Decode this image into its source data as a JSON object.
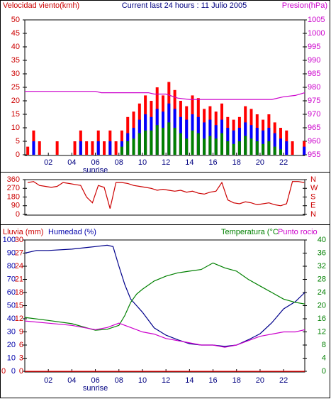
{
  "chart_data": [
    {
      "type": "bar",
      "title": "Current last 24 hours : 11 Julio 2005",
      "left_label": "Velocidad viento(kmh)",
      "right_label": "Presion(hPa)",
      "xlim": [
        0,
        23.8
      ],
      "xticks": [
        {
          "value": 2,
          "label": "02"
        },
        {
          "value": 4,
          "label": "04"
        },
        {
          "value": 6,
          "label": "06"
        },
        {
          "value": 8,
          "label": "08"
        },
        {
          "value": 10,
          "label": "10"
        },
        {
          "value": 12,
          "label": "12"
        },
        {
          "value": 14,
          "label": "14"
        },
        {
          "value": 16,
          "label": "16"
        },
        {
          "value": 18,
          "label": "18"
        },
        {
          "value": 20,
          "label": "20"
        },
        {
          "value": 22,
          "label": "22"
        }
      ],
      "annotation": {
        "x": 6,
        "text": "sunrise"
      },
      "ylim": [
        0,
        50
      ],
      "yticks": [
        0,
        5,
        10,
        15,
        20,
        25,
        30,
        35,
        40,
        45,
        50
      ],
      "y_color": "#cc0000",
      "y2lim": [
        955,
        1005
      ],
      "y2ticks": [
        955,
        960,
        965,
        970,
        975,
        980,
        985,
        990,
        995,
        1000,
        1005
      ],
      "y2_color": "#cc00cc",
      "x": [
        0.25,
        0.75,
        1.25,
        1.75,
        2.25,
        2.75,
        3.25,
        3.75,
        4.25,
        4.75,
        5.25,
        5.75,
        6.25,
        6.75,
        7.25,
        7.75,
        8.25,
        8.75,
        9.25,
        9.75,
        10.25,
        10.75,
        11.25,
        11.75,
        12.25,
        12.75,
        13.25,
        13.75,
        14.25,
        14.75,
        15.25,
        15.75,
        16.25,
        16.75,
        17.25,
        17.75,
        18.25,
        18.75,
        19.25,
        19.75,
        20.25,
        20.75,
        21.25,
        21.75,
        22.25,
        22.75,
        23.25,
        23.75
      ],
      "series": [
        {
          "color": "#ff0000",
          "values": [
            3,
            9,
            5,
            0,
            0,
            5,
            0,
            0,
            5,
            9,
            5,
            5,
            9,
            5,
            9,
            5,
            9,
            14,
            16,
            19,
            22,
            20,
            25,
            22,
            27,
            24,
            20,
            18,
            22,
            21,
            17,
            18,
            16,
            19,
            14,
            13,
            14,
            18,
            17,
            15,
            13,
            15,
            12,
            10,
            9,
            5,
            0,
            5
          ]
        },
        {
          "color": "#0000ff",
          "values": [
            0,
            5,
            0,
            0,
            0,
            0,
            0,
            0,
            0,
            5,
            0,
            0,
            5,
            0,
            5,
            0,
            5,
            8,
            10,
            13,
            15,
            14,
            17,
            16,
            19,
            17,
            14,
            13,
            15,
            14,
            12,
            13,
            11,
            13,
            10,
            9,
            10,
            12,
            11,
            10,
            9,
            10,
            8,
            6,
            5,
            0,
            0,
            3
          ]
        },
        {
          "color": "#008000",
          "values": [
            0,
            0,
            0,
            0,
            0,
            0,
            0,
            0,
            0,
            0,
            0,
            0,
            0,
            0,
            0,
            0,
            3,
            5,
            6,
            8,
            9,
            9,
            11,
            10,
            12,
            10,
            8,
            6,
            9,
            8,
            6,
            7,
            6,
            8,
            5,
            4,
            5,
            7,
            6,
            5,
            4,
            5,
            3,
            2,
            0,
            0,
            0,
            0
          ]
        },
        {
          "color": "#cc00cc",
          "axis": "y2",
          "line": true,
          "x": [
            0,
            6,
            6.5,
            10.5,
            11,
            12,
            13,
            14,
            21,
            22,
            23,
            23.8
          ],
          "values": [
            978.5,
            978.5,
            978,
            978,
            977.5,
            977.5,
            976,
            975.5,
            975.5,
            976.5,
            977,
            978
          ]
        }
      ]
    },
    {
      "type": "line",
      "xlim": [
        0,
        23.8
      ],
      "ylim": [
        0,
        360
      ],
      "yticks": [
        0,
        90,
        180,
        270,
        360
      ],
      "y_color": "#cc0000",
      "y2lim": [
        0,
        360
      ],
      "y2ticks": [
        {
          "value": 0,
          "label": "N"
        },
        {
          "value": 90,
          "label": "E"
        },
        {
          "value": 180,
          "label": "S"
        },
        {
          "value": 270,
          "label": "W"
        },
        {
          "value": 360,
          "label": "N"
        }
      ],
      "y2_color": "#cc0000",
      "series": [
        {
          "color": "#cc0000",
          "x": [
            0.25,
            0.75,
            1.25,
            1.75,
            2.25,
            2.75,
            3.25,
            3.75,
            4.25,
            4.75,
            5.25,
            5.75,
            6.25,
            6.75,
            7.25,
            7.75,
            8.25,
            8.75,
            9.25,
            9.75,
            10.25,
            10.75,
            11.25,
            11.75,
            12.25,
            12.75,
            13.25,
            13.75,
            14.25,
            14.75,
            15.25,
            15.75,
            16.25,
            16.75,
            17.25,
            17.75,
            18.25,
            18.75,
            19.25,
            19.75,
            20.25,
            20.75,
            21.25,
            21.75,
            22.25,
            22.75,
            23.25,
            23.75
          ],
          "values": [
            330,
            340,
            300,
            290,
            280,
            290,
            330,
            320,
            310,
            300,
            180,
            120,
            300,
            280,
            60,
            330,
            330,
            320,
            300,
            290,
            280,
            270,
            250,
            260,
            250,
            240,
            250,
            230,
            240,
            220,
            210,
            230,
            240,
            330,
            150,
            120,
            110,
            130,
            120,
            100,
            110,
            120,
            100,
            90,
            110,
            340,
            340,
            330
          ]
        }
      ]
    },
    {
      "type": "line",
      "labels": [
        "Lluvia (mm)",
        "Humedad (%)",
        "Temperatura (°C",
        "Punto rocio"
      ],
      "xlim": [
        0,
        23.8
      ],
      "xticks": [
        {
          "value": 2,
          "label": "02"
        },
        {
          "value": 4,
          "label": "04"
        },
        {
          "value": 6,
          "label": "06"
        },
        {
          "value": 8,
          "label": "08"
        },
        {
          "value": 10,
          "label": "10"
        },
        {
          "value": 12,
          "label": "12"
        },
        {
          "value": 14,
          "label": "14"
        },
        {
          "value": 16,
          "label": "16"
        },
        {
          "value": 18,
          "label": "18"
        },
        {
          "value": 20,
          "label": "20"
        },
        {
          "value": 22,
          "label": "22"
        }
      ],
      "annotation": {
        "x": 6,
        "text": "sunrise"
      },
      "ylim": [
        0,
        100
      ],
      "yticks": [
        0,
        10,
        20,
        30,
        40,
        50,
        60,
        70,
        80,
        90,
        100
      ],
      "y_color": "#0000aa",
      "y2lim": [
        0,
        40
      ],
      "y2ticks": [
        0,
        4,
        8,
        12,
        16,
        20,
        24,
        28,
        32,
        36,
        40
      ],
      "y2_color": "#008000",
      "y3lim": [
        0,
        30
      ],
      "y3ticks": [
        0,
        3,
        6,
        9,
        12,
        15,
        18,
        21,
        24,
        27,
        30
      ],
      "y3_color": "#cc0000",
      "y4lim": [
        0,
        10
      ],
      "y4ticks": [
        0
      ],
      "y4_color": "#cc0000",
      "series": [
        {
          "color": "#ff0000",
          "axis": "y4",
          "x": [
            0,
            23.8
          ],
          "values": [
            0,
            0
          ]
        },
        {
          "color": "#00008b",
          "axis": "y",
          "x": [
            0,
            1,
            2,
            4,
            6,
            7,
            7.5,
            8,
            8.5,
            9,
            9.5,
            10,
            11,
            12,
            13,
            14,
            15,
            16,
            17,
            18,
            19,
            20,
            21,
            22,
            23,
            23.8
          ],
          "values": [
            90,
            92,
            92,
            93,
            95,
            96,
            95,
            80,
            66,
            55,
            50,
            45,
            33,
            27.5,
            24,
            21,
            20,
            20,
            19,
            20,
            24,
            28.6,
            37,
            47.5,
            53,
            60
          ]
        },
        {
          "color": "#008000",
          "axis": "y2",
          "x": [
            0,
            2,
            4,
            6,
            7,
            8,
            8.5,
            9,
            9.5,
            10,
            11,
            12,
            13,
            14,
            15,
            16,
            17,
            18,
            19,
            20,
            21,
            22,
            23,
            23.8
          ],
          "values": [
            16.4,
            15.5,
            14.5,
            12.5,
            12.8,
            14,
            17,
            21,
            23.5,
            25,
            27.5,
            29,
            30,
            30.5,
            31,
            33,
            31.5,
            30.5,
            28,
            26,
            24,
            22,
            21,
            20.5
          ]
        },
        {
          "color": "#cc00cc",
          "axis": "y3",
          "x": [
            0,
            2,
            4,
            6,
            7,
            8,
            9,
            10,
            11,
            12,
            13,
            14,
            15,
            16,
            17,
            18,
            19,
            20,
            21,
            22,
            23,
            23.8
          ],
          "values": [
            11.5,
            11,
            10.5,
            9.5,
            10,
            11,
            10,
            9,
            8.5,
            7.5,
            7,
            6.5,
            6,
            6,
            5.5,
            6,
            7,
            8,
            8.5,
            9,
            9,
            9.5
          ]
        }
      ]
    }
  ]
}
